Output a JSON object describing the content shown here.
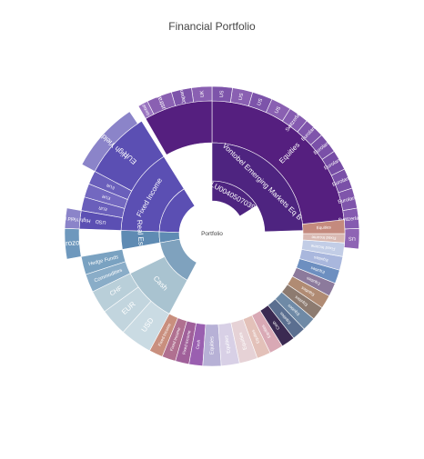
{
  "chart_data": {
    "type": "sunburst",
    "title": "Financial Portfolio",
    "root": "Portfolio",
    "colors": {
      "equities_dark": "#4f2280",
      "equities_mid": "#6a3ea1",
      "equities_light": "#8e6ab9",
      "fixed_income": "#5a4fb1",
      "fixed_income_light": "#8b84c9",
      "real_estate": "#5f8bb3",
      "cash": "#a9c3d0",
      "other_warm": "#c48a7e"
    },
    "nodes": [
      {
        "id": "eq-main",
        "label": "Equities",
        "level": 3,
        "start": 0,
        "end": 88,
        "color": "#551f7f"
      },
      {
        "id": "eq-fund-a",
        "label": "LU0040507039",
        "level": 1,
        "start": 0,
        "end": 58,
        "color": "#4e2480"
      },
      {
        "id": "eq-fund-b",
        "label": "Vontobel Emerging Markets Eq B",
        "level": 2,
        "start": 0,
        "end": 88,
        "color": "#4e2480"
      },
      {
        "id": "eq-us-1",
        "label": "US",
        "level": 4,
        "start": 88,
        "end": 96,
        "color": "#8e64b4"
      },
      {
        "id": "eq-switzerland",
        "label": "Switzerland",
        "level": 4,
        "start": 80,
        "end": 88,
        "color": "#855bb0"
      },
      {
        "id": "eq-euroland-1",
        "label": "Euroland",
        "level": 4,
        "start": 72,
        "end": 80,
        "color": "#7f55ab"
      },
      {
        "id": "eq-euroland-2",
        "label": "Euroland",
        "level": 4,
        "start": 64,
        "end": 72,
        "color": "#7a50a8"
      },
      {
        "id": "eq-euroland-3",
        "label": "Euroland",
        "level": 4,
        "start": 56,
        "end": 64,
        "color": "#764ca5"
      },
      {
        "id": "eq-euroland-4",
        "label": "Euroland",
        "level": 4,
        "start": 48,
        "end": 56,
        "color": "#7a50a8"
      },
      {
        "id": "eq-euroland-5",
        "label": "Euroland",
        "level": 4,
        "start": 40,
        "end": 48,
        "color": "#7f55ab"
      },
      {
        "id": "eq-switzerland-2",
        "label": "Switzerland",
        "level": 4,
        "start": 32,
        "end": 40,
        "color": "#855bb0"
      },
      {
        "id": "eq-us-2",
        "label": "US",
        "level": 4,
        "start": 24,
        "end": 32,
        "color": "#8a60b2"
      },
      {
        "id": "eq-us-3",
        "label": "US",
        "level": 4,
        "start": 16,
        "end": 24,
        "color": "#7d54aa"
      },
      {
        "id": "eq-us-4",
        "label": "US",
        "level": 4,
        "start": 8,
        "end": 16,
        "color": "#8a60b2"
      },
      {
        "id": "eq-us-5",
        "label": "US",
        "level": 4,
        "start": 0,
        "end": 8,
        "color": "#7d54aa"
      },
      {
        "id": "eq-uk",
        "label": "UK",
        "level": 4,
        "start": -8,
        "end": 0,
        "color": "#8a60b2"
      },
      {
        "id": "eq-japan",
        "label": "Japan",
        "level": 4,
        "start": -16,
        "end": -8,
        "color": "#7d54aa"
      },
      {
        "id": "eq-australia",
        "label": "Australia",
        "level": 4,
        "start": -26,
        "end": -16,
        "color": "#8a60b2"
      },
      {
        "id": "eq-global",
        "label": "Global",
        "level": 4,
        "start": -30,
        "end": -26,
        "color": "#9a74c0"
      },
      {
        "id": "eq-band",
        "label": "",
        "level": 3,
        "start": -30,
        "end": 0,
        "color": "#551f7f"
      },
      {
        "id": "fi-main",
        "label": "Fixed Income",
        "level": 2,
        "start": -88,
        "end": -32,
        "color": "#5b4fb3"
      },
      {
        "id": "fi-inner",
        "label": "",
        "level": 1,
        "start": -88,
        "end": -32,
        "color": "#5b4fb3"
      },
      {
        "id": "fi-eur",
        "label": "EUR",
        "level": 3,
        "start": -62,
        "end": -32,
        "color": "#5b4fb3"
      },
      {
        "id": "fi-eur-2",
        "label": "EUR",
        "level": 3,
        "start": -68,
        "end": -62,
        "color": "#6a5fbb"
      },
      {
        "id": "fi-eur-3",
        "label": "EUR",
        "level": 3,
        "start": -74,
        "end": -68,
        "color": "#7368c0"
      },
      {
        "id": "fi-eur-4",
        "label": "EUR",
        "level": 3,
        "start": -80,
        "end": -74,
        "color": "#6a5fbb"
      },
      {
        "id": "fi-usd",
        "label": "USD",
        "level": 3,
        "start": -88,
        "end": -80,
        "color": "#5b4fb3"
      },
      {
        "id": "fi-hy-1",
        "label": "High Yield Bond",
        "level": 4,
        "start": -62,
        "end": -34,
        "color": "#8b84c9"
      },
      {
        "id": "fi-hy-2",
        "label": "High Yield Bond",
        "level": 4,
        "start": -88,
        "end": -80,
        "color": "#8b84c9"
      },
      {
        "id": "re-main",
        "label": "Real Estate",
        "level": 2,
        "start": -100,
        "end": -88,
        "color": "#5f8bb3"
      },
      {
        "id": "re-inner",
        "label": "",
        "level": 1,
        "start": -100,
        "end": -88,
        "color": "#5f8bb3"
      },
      {
        "id": "re-eurozone",
        "label": "Eurozone",
        "level": 4,
        "start": -100,
        "end": -88,
        "color": "#6e98bd"
      },
      {
        "id": "hf-main",
        "label": "Hedge Funds",
        "level": 3,
        "start": -108,
        "end": -100,
        "color": "#7aa2c1"
      },
      {
        "id": "com-main",
        "label": "Commodities",
        "level": 3,
        "start": -116,
        "end": -108,
        "color": "#8aadc8"
      },
      {
        "id": "cash-main",
        "label": "Cash",
        "level": 2,
        "start": -152,
        "end": -116,
        "color": "#a9c3d0"
      },
      {
        "id": "cash-inner",
        "label": "",
        "level": 1,
        "start": -152,
        "end": -100,
        "color": "#7fa2be"
      },
      {
        "id": "cash-chf",
        "label": "CHF",
        "level": 3,
        "start": -126,
        "end": -116,
        "color": "#b9cfd9"
      },
      {
        "id": "cash-eur",
        "label": "EUR",
        "level": 3,
        "start": -138,
        "end": -126,
        "color": "#c2d5de"
      },
      {
        "id": "cash-usd",
        "label": "USD",
        "level": 3,
        "start": -152,
        "end": -138,
        "color": "#cadbe3"
      },
      {
        "id": "lr-fixed",
        "label": "Fixed Income",
        "level": 3,
        "start": -158,
        "end": -152,
        "color": "#c98f7e"
      },
      {
        "id": "lr-fixed-2",
        "label": "Fixed Income",
        "level": 3,
        "start": -164,
        "end": -158,
        "color": "#b07090"
      },
      {
        "id": "lr-fixed-3",
        "label": "Fixed Income",
        "level": 3,
        "start": -170,
        "end": -164,
        "color": "#a0609a"
      },
      {
        "id": "lr-cash",
        "label": "Cash",
        "level": 3,
        "start": -176,
        "end": -170,
        "color": "#9a5fb0"
      },
      {
        "id": "lr-equities-1",
        "label": "Equities",
        "level": 3,
        "start": -184,
        "end": -176,
        "color": "#b7b1d6"
      },
      {
        "id": "lr-equities-2",
        "label": "Equities",
        "level": 3,
        "start": -192,
        "end": -184,
        "color": "#d8d0e6"
      },
      {
        "id": "lr-equities-3",
        "label": "Equities",
        "level": 3,
        "start": -200,
        "end": -192,
        "color": "#e6d2d6"
      },
      {
        "id": "lr-equities-4",
        "label": "Equities",
        "level": 3,
        "start": -206,
        "end": -200,
        "color": "#e3c1b9"
      },
      {
        "id": "lr-equities-5",
        "label": "Equities",
        "level": 3,
        "start": -212,
        "end": -206,
        "color": "#d9a9b5"
      },
      {
        "id": "lr-cash-2",
        "label": "Cash",
        "level": 3,
        "start": -218,
        "end": -212,
        "color": "#3b2a52"
      },
      {
        "id": "lr-equities-6",
        "label": "Equities",
        "level": 3,
        "start": -224,
        "end": -218,
        "color": "#5b6f90"
      },
      {
        "id": "lr-equities-7",
        "label": "Equities",
        "level": 3,
        "start": -230,
        "end": -224,
        "color": "#6f8aa6"
      },
      {
        "id": "lr-equities-8",
        "label": "Equities",
        "level": 3,
        "start": -236,
        "end": -230,
        "color": "#8d7b70"
      },
      {
        "id": "lr-equities-9",
        "label": "Equities",
        "level": 3,
        "start": -242,
        "end": -236,
        "color": "#b08b73"
      },
      {
        "id": "lr-equities-10",
        "label": "Equities",
        "level": 3,
        "start": -248,
        "end": -242,
        "color": "#8c7a9c"
      },
      {
        "id": "lr-equities-11",
        "label": "Equities",
        "level": 3,
        "start": -254,
        "end": -248,
        "color": "#6d8fc0"
      },
      {
        "id": "lr-equities-12",
        "label": "Equities",
        "level": 3,
        "start": -260,
        "end": -254,
        "color": "#a9b7dd"
      },
      {
        "id": "lr-fixed-4",
        "label": "Fixed Income",
        "level": 3,
        "start": -266,
        "end": -260,
        "color": "#c2cde6"
      },
      {
        "id": "lr-fixed-5",
        "label": "Fixed Income",
        "level": 3,
        "start": -270,
        "end": -266,
        "color": "#d9b9b2"
      },
      {
        "id": "lr-eq-top",
        "label": "Equities",
        "level": 3,
        "start": -276,
        "end": -270,
        "color": "#c48a7e"
      }
    ]
  }
}
